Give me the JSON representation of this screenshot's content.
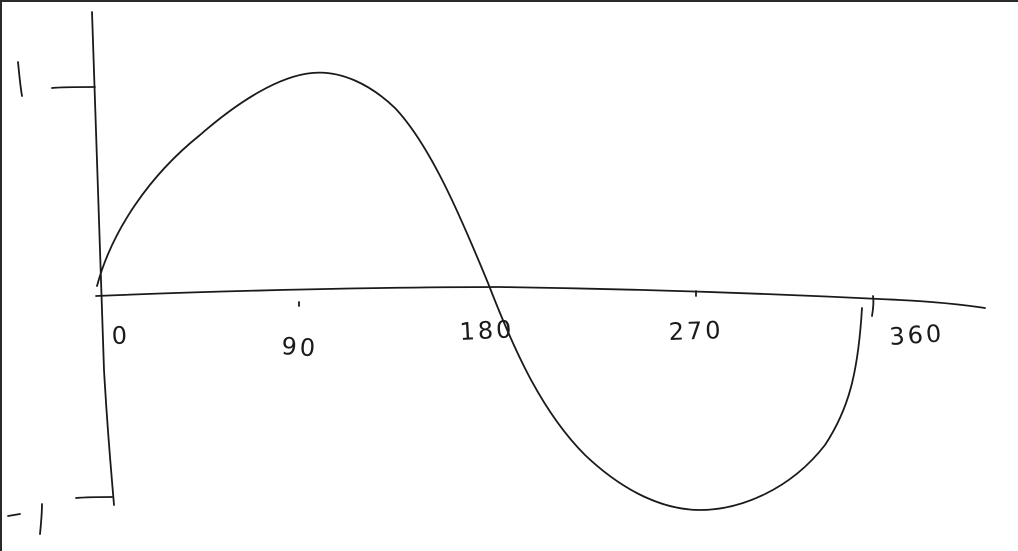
{
  "chart_data": {
    "type": "line",
    "title": "",
    "xlabel": "",
    "ylabel": "",
    "style": "hand-drawn sketch",
    "x_ticks": [
      "0",
      "90",
      "180",
      "270",
      "360"
    ],
    "y_ticks": [
      "1",
      "-1"
    ],
    "xlim": [
      0,
      360
    ],
    "ylim": [
      -1,
      1
    ],
    "grid": false,
    "series": [
      {
        "x": [
          0,
          30,
          60,
          90,
          120,
          150,
          180,
          210,
          240,
          270,
          300,
          330,
          360
        ],
        "values": [
          0,
          0.5,
          0.87,
          1,
          0.87,
          0.5,
          0,
          -0.5,
          -0.87,
          -1,
          -0.87,
          -0.5,
          0
        ],
        "color": "#1a1a1a"
      }
    ]
  }
}
